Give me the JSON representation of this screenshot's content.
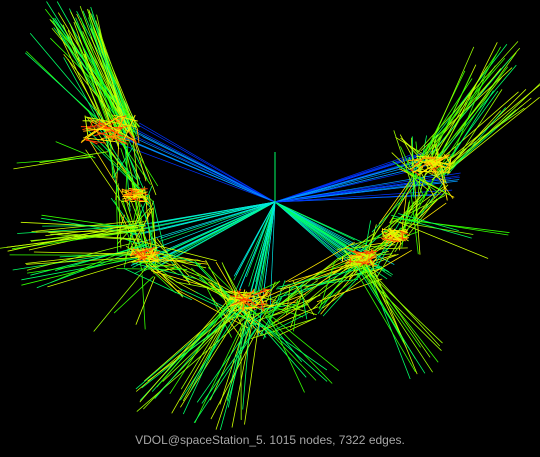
{
  "caption": "VDOL@spaceStation_5. 1015 nodes, 7322 edges.",
  "palette": {
    "background": "#000000",
    "caption_text": "#a6a6a6",
    "edge_colors": [
      "#0033ff",
      "#0099ff",
      "#00e6e6",
      "#00ff66",
      "#33ff00",
      "#99ff00",
      "#ccff00",
      "#ffe600",
      "#ff9900",
      "#ff4400"
    ]
  }
}
